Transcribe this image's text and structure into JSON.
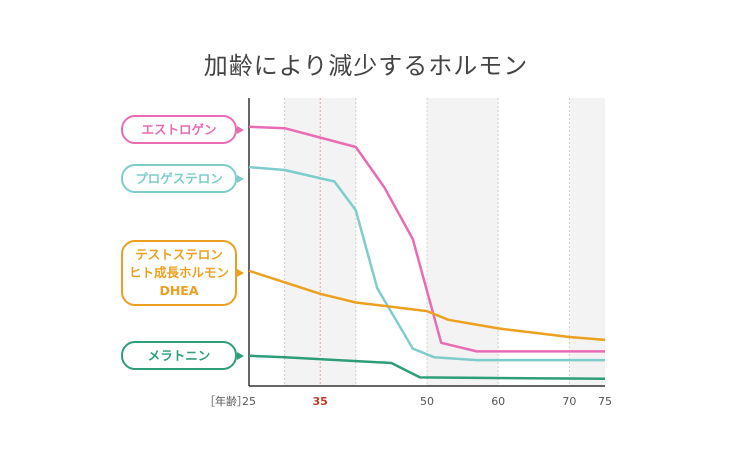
{
  "chart_data": {
    "type": "line",
    "title": "加齢により減少するホルモン",
    "xlabel": "［年齢］",
    "ylabel": "",
    "xlim": [
      25,
      75
    ],
    "ylim": [
      0,
      100
    ],
    "x_ticks": [
      {
        "value": 25,
        "label": "25",
        "color": "#555555"
      },
      {
        "value": 35,
        "label": "35",
        "color": "#c0392b"
      },
      {
        "value": 50,
        "label": "50",
        "color": "#555555"
      },
      {
        "value": 60,
        "label": "60",
        "color": "#555555"
      },
      {
        "value": 70,
        "label": "70",
        "color": "#555555"
      },
      {
        "value": 75,
        "label": "75",
        "color": "#555555"
      }
    ],
    "shaded_bands": [
      [
        30,
        35
      ],
      [
        35,
        40
      ],
      [
        50,
        60
      ],
      [
        70,
        75
      ]
    ],
    "highlight_line": 35,
    "series": [
      {
        "name": "エストロゲン",
        "labels": [
          "エストロゲン"
        ],
        "color": "#e96bb4",
        "points": [
          [
            25,
            90
          ],
          [
            30,
            89.5
          ],
          [
            40,
            83
          ],
          [
            44,
            69
          ],
          [
            48,
            51
          ],
          [
            52,
            15
          ],
          [
            57,
            12
          ],
          [
            75,
            12
          ]
        ]
      },
      {
        "name": "プロゲステロン",
        "labels": [
          "プロゲステロン"
        ],
        "color": "#7ecdcb",
        "points": [
          [
            25,
            76
          ],
          [
            30,
            75
          ],
          [
            37,
            71
          ],
          [
            40,
            61
          ],
          [
            43,
            34
          ],
          [
            48,
            13
          ],
          [
            51,
            10
          ],
          [
            57,
            9
          ],
          [
            75,
            9
          ]
        ]
      },
      {
        "name": "テストステロン ヒト成長ホルモン DHEA",
        "labels": [
          "テストステロン",
          "ヒト成長ホルモン",
          "DHEA"
        ],
        "color": "#eda020",
        "points": [
          [
            25,
            40
          ],
          [
            30,
            36
          ],
          [
            35,
            32
          ],
          [
            40,
            29
          ],
          [
            50,
            26
          ],
          [
            53,
            23
          ],
          [
            60,
            20
          ],
          [
            70,
            17
          ],
          [
            75,
            16
          ]
        ]
      },
      {
        "name": "メラトニン",
        "labels": [
          "メラトニン"
        ],
        "color": "#2e9e78",
        "points": [
          [
            25,
            10.5
          ],
          [
            30,
            10
          ],
          [
            45,
            8
          ],
          [
            49,
            3
          ],
          [
            75,
            2.5
          ]
        ]
      }
    ]
  }
}
